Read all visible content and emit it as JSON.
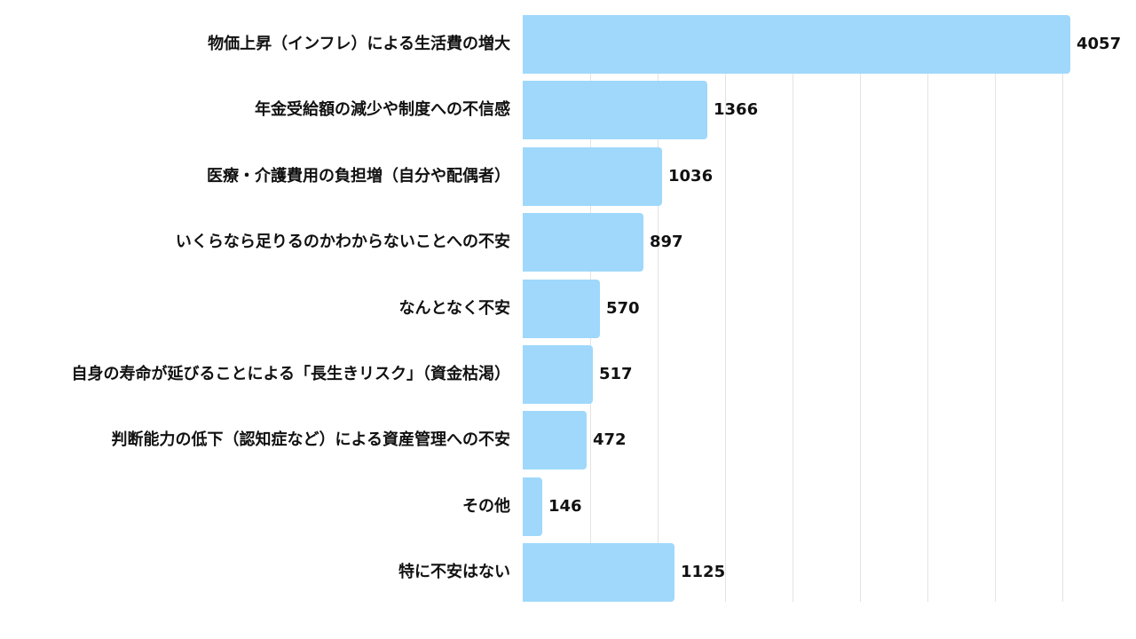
{
  "chart_data": {
    "type": "bar",
    "orientation": "horizontal",
    "title": "",
    "xlabel": "",
    "ylabel": "",
    "categories": [
      "物価上昇（インフレ）による生活費の増大",
      "年金受給額の減少や制度への不信感",
      "医療・介護費用の負担増（自分や配偶者）",
      "いくらなら足りるのかわからないことへの不安",
      "なんとなく不安",
      "自身の寿命が延びることによる「長生きリスク」（資金枯渇）",
      "判断能力の低下（認知症など）による資産管理への不安",
      "その他",
      "特に不安はない"
    ],
    "values": [
      4057,
      1366,
      1036,
      897,
      570,
      517,
      472,
      146,
      1125
    ],
    "value_labels": [
      "4057",
      "1366",
      "1036",
      "897",
      "570",
      "517",
      "472",
      "146",
      "1125"
    ],
    "xlim": [
      0,
      4000
    ],
    "grid_step": 500,
    "grid": true,
    "tick_labels_shown": false,
    "legend": null,
    "bar_color": "#9fd8fb",
    "grid_color": "#e3e3e3",
    "text_color": "#111111"
  }
}
